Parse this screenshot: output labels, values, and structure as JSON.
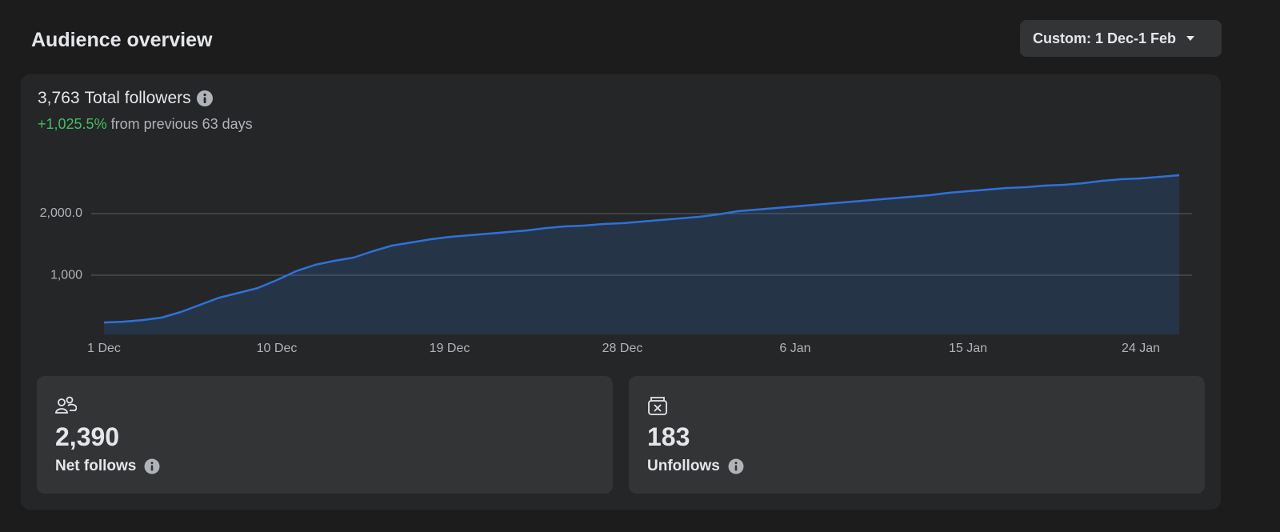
{
  "header": {
    "title": "Audience overview",
    "date_range": "Custom: 1 Dec-1 Feb"
  },
  "summary": {
    "total": "3,763",
    "total_label": "Total followers",
    "change": "+1,025.5%",
    "change_text": "from previous 63 days"
  },
  "chart_data": {
    "type": "area",
    "categories": [
      "1 Dec",
      null,
      null,
      null,
      null,
      null,
      null,
      null,
      null,
      "10 Dec",
      null,
      null,
      null,
      null,
      null,
      null,
      null,
      null,
      "19 Dec",
      null,
      null,
      null,
      null,
      null,
      null,
      null,
      null,
      "28 Dec",
      null,
      null,
      null,
      null,
      null,
      null,
      null,
      null,
      "6 Jan",
      null,
      null,
      null,
      null,
      null,
      null,
      null,
      null,
      "15 Jan",
      null,
      null,
      null,
      null,
      null,
      null,
      null,
      null,
      "24 Jan",
      null,
      null
    ],
    "values": [
      234,
      247,
      273,
      312,
      403,
      519,
      636,
      714,
      792,
      922,
      1065,
      1169,
      1234,
      1286,
      1390,
      1481,
      1532,
      1584,
      1623,
      1649,
      1675,
      1701,
      1727,
      1766,
      1792,
      1805,
      1831,
      1844,
      1870,
      1896,
      1922,
      1948,
      1987,
      2039,
      2065,
      2091,
      2117,
      2143,
      2169,
      2195,
      2221,
      2247,
      2273,
      2299,
      2338,
      2364,
      2390,
      2416,
      2429,
      2455,
      2468,
      2494,
      2532,
      2558,
      2571,
      2597,
      2623
    ],
    "color": "#2d72d9",
    "ylim": [
      40,
      3000
    ],
    "yticks": [
      {
        "value": 1000,
        "label": "1,000"
      },
      {
        "value": 2000,
        "label": "2,000.0"
      }
    ],
    "grid": true
  },
  "cards": [
    {
      "value": "2,390",
      "label": "Net follows"
    },
    {
      "value": "183",
      "label": "Unfollows"
    }
  ]
}
